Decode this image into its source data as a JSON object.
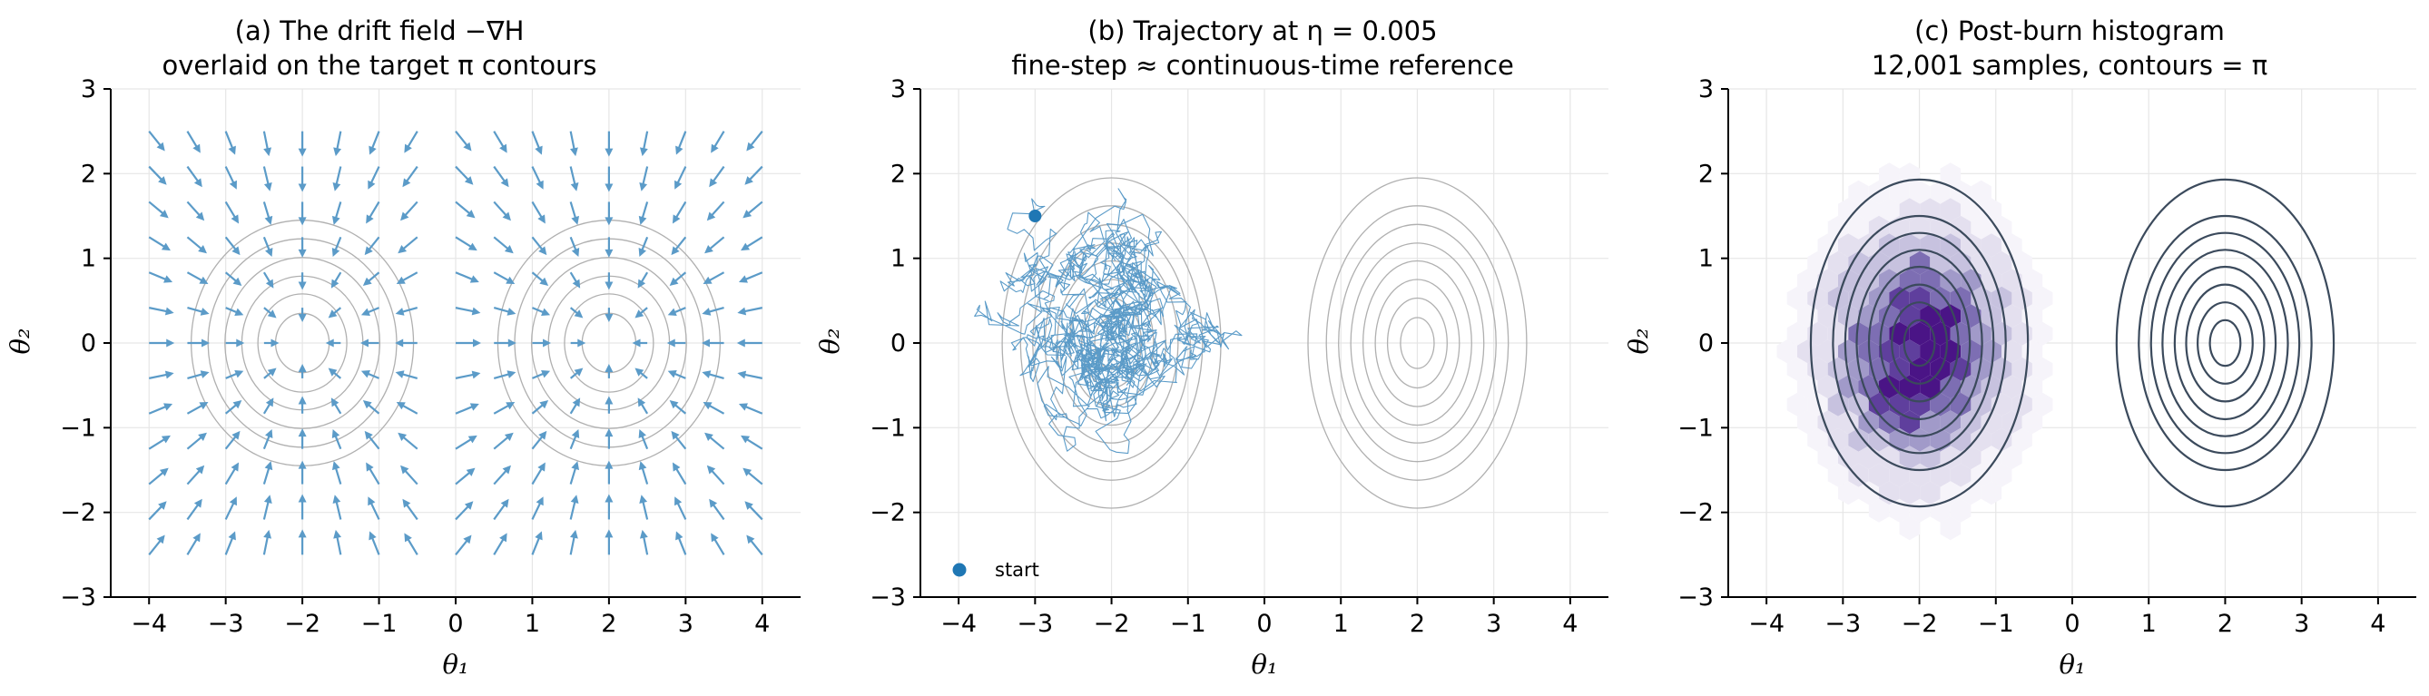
{
  "chart_data": [
    {
      "type": "quiver",
      "title_line1": "(a) The drift field −∇H",
      "title_line2": "overlaid on the target π contours",
      "xlabel": "θ₁",
      "ylabel": "θ₂",
      "xlim": [
        -4.5,
        4.5
      ],
      "ylim": [
        -3,
        3
      ],
      "xticks": [
        -4,
        -3,
        -2,
        -1,
        0,
        1,
        2,
        3,
        4
      ],
      "yticks": [
        -3,
        -2,
        -1,
        0,
        1,
        2,
        3
      ],
      "xtick_labels": [
        "−4",
        "−3",
        "−2",
        "−1",
        "0",
        "1",
        "2",
        "3",
        "4"
      ],
      "ytick_labels": [
        "−3",
        "−2",
        "−1",
        "0",
        "1",
        "2",
        "3"
      ],
      "grid": true,
      "arrow_color": "#5b9bc8",
      "contour_color": "#b0b0b0",
      "modes": [
        [
          -2,
          0
        ],
        [
          2,
          0
        ]
      ],
      "quiver_grid": {
        "x_range": [
          -4,
          4
        ],
        "y_range": [
          -2.5,
          2.5
        ],
        "nx": 17,
        "ny": 13
      }
    },
    {
      "type": "line",
      "title_line1": "(b) Trajectory at η = 0.005",
      "title_line2": "fine-step ≈ continuous-time reference",
      "xlabel": "θ₁",
      "ylabel": "θ₂",
      "xlim": [
        -4.5,
        4.5
      ],
      "ylim": [
        -3,
        3
      ],
      "xticks": [
        -4,
        -3,
        -2,
        -1,
        0,
        1,
        2,
        3,
        4
      ],
      "yticks": [
        -3,
        -2,
        -1,
        0,
        1,
        2,
        3
      ],
      "xtick_labels": [
        "−4",
        "−3",
        "−2",
        "−1",
        "0",
        "1",
        "2",
        "3",
        "4"
      ],
      "ytick_labels": [
        "−3",
        "−2",
        "−1",
        "0",
        "1",
        "2",
        "3"
      ],
      "grid": true,
      "line_color": "#5b9bc8",
      "start_color": "#1f77b4",
      "start_point": [
        -3,
        1.5
      ],
      "legend_label": "start",
      "legend_position": "lower-left",
      "trajectory_extent": {
        "x": [
          -3.8,
          -0.1
        ],
        "y": [
          -1.4,
          2.0
        ]
      },
      "contour_color": "#b0b0b0",
      "modes": [
        [
          -2,
          0
        ],
        [
          2,
          0
        ]
      ]
    },
    {
      "type": "heatmap",
      "title_line1": "(c) Post-burn histogram",
      "title_line2": "12,001 samples, contours = π",
      "xlabel": "θ₁",
      "ylabel": "θ₂",
      "xlim": [
        -4.5,
        4.5
      ],
      "ylim": [
        -3,
        3
      ],
      "xticks": [
        -4,
        -3,
        -2,
        -1,
        0,
        1,
        2,
        3,
        4
      ],
      "yticks": [
        -3,
        -2,
        -1,
        0,
        1,
        2,
        3
      ],
      "xtick_labels": [
        "−4",
        "−3",
        "−2",
        "−1",
        "0",
        "1",
        "2",
        "3",
        "4"
      ],
      "ytick_labels": [
        "−3",
        "−2",
        "−1",
        "0",
        "1",
        "2",
        "3"
      ],
      "grid": true,
      "hex_cmap": [
        "#f6f4fa",
        "#e4e0ef",
        "#c7c2df",
        "#a19ac9",
        "#7d6eb3",
        "#5f3f9d",
        "#4a1486"
      ],
      "hex_density_center": [
        -2,
        -0.1
      ],
      "contour_color": "#3b4a5c",
      "modes": [
        [
          -2,
          0
        ],
        [
          2,
          0
        ]
      ]
    }
  ]
}
